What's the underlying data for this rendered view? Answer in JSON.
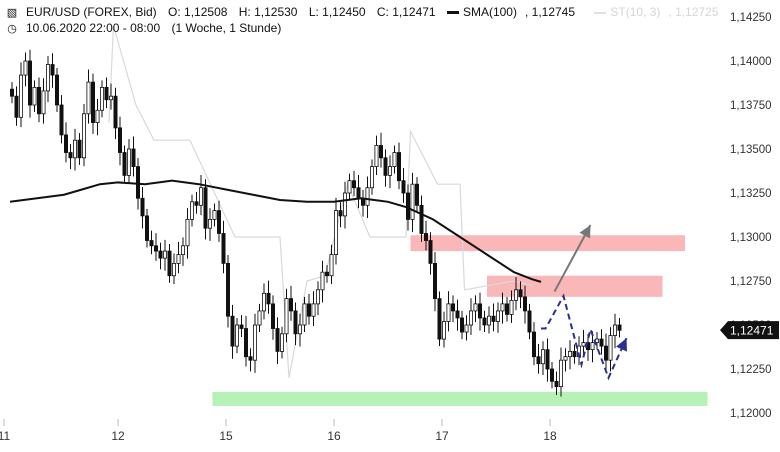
{
  "header": {
    "instrument": "EUR/USD (FOREX, Bid)",
    "open": "O: 1,12508",
    "high": "H: 1,12530",
    "low": "L: 1,12450",
    "close": "C: 1,12471",
    "sma_label": "SMA(100)",
    "sma_value": "1,12745",
    "st_label": "ST(10, 3)",
    "st_value": "1,12725",
    "datetime": "10.06.2020 22:00 - 08:00",
    "period": "(1 Woche, 1 Stunde)",
    "chart_icon": "candlestick-icon",
    "clock_icon": "clock-icon"
  },
  "colors": {
    "candle": "#111111",
    "sma": "#111111",
    "st": "#d9d9d9",
    "resistance_zone": "#f9b7b7",
    "support_zone": "#b6f2b6",
    "arrow_up": "#777777",
    "arrow_path": "#2b2f91",
    "price_tag_bg": "#111111",
    "price_tag_text": "#ffffff"
  },
  "chart_data": {
    "type": "candlestick",
    "ylim": [
      1.1195,
      1.1435
    ],
    "y_ticks": [
      "1,14250",
      "1,14000",
      "1,13750",
      "1,13500",
      "1,13250",
      "1,13000",
      "1,12750",
      "1,12500",
      "1,12250",
      "1,12000"
    ],
    "y_tick_values": [
      1.1425,
      1.14,
      1.1375,
      1.135,
      1.1325,
      1.13,
      1.1275,
      1.125,
      1.1225,
      1.12
    ],
    "x_ticks": [
      {
        "label": "11",
        "hour": 0
      },
      {
        "label": "12",
        "hour": 24
      },
      {
        "label": "15",
        "hour": 48
      },
      {
        "label": "16",
        "hour": 72
      },
      {
        "label": "17",
        "hour": 96
      },
      {
        "label": "18",
        "hour": 120
      }
    ],
    "last_price": "1,12471",
    "last_price_value": 1.12471,
    "closes": [
      1.138,
      1.1368,
      1.1392,
      1.14,
      1.1375,
      1.1385,
      1.137,
      1.1383,
      1.1398,
      1.1392,
      1.1375,
      1.1358,
      1.1348,
      1.1345,
      1.1355,
      1.1345,
      1.137,
      1.1388,
      1.1365,
      1.1372,
      1.1385,
      1.1378,
      1.138,
      1.1362,
      1.1348,
      1.1335,
      1.135,
      1.134,
      1.1322,
      1.1312,
      1.1298,
      1.1295,
      1.1292,
      1.1288,
      1.1292,
      1.1278,
      1.1285,
      1.129,
      1.1295,
      1.131,
      1.132,
      1.1318,
      1.1328,
      1.1305,
      1.131,
      1.1315,
      1.1302,
      1.1285,
      1.1255,
      1.1238,
      1.125,
      1.1248,
      1.1232,
      1.123,
      1.125,
      1.1258,
      1.1268,
      1.1262,
      1.1248,
      1.1235,
      1.1245,
      1.1265,
      1.1258,
      1.1245,
      1.125,
      1.1262,
      1.1255,
      1.1262,
      1.127,
      1.128,
      1.1278,
      1.129,
      1.1315,
      1.1312,
      1.1325,
      1.1332,
      1.1328,
      1.1322,
      1.1318,
      1.1328,
      1.134,
      1.1352,
      1.1345,
      1.1335,
      1.134,
      1.1348,
      1.1332,
      1.1325,
      1.131,
      1.133,
      1.1318,
      1.1302,
      1.1298,
      1.1285,
      1.1265,
      1.1242,
      1.1252,
      1.1262,
      1.1258,
      1.1254,
      1.1246,
      1.125,
      1.1258,
      1.1262,
      1.1254,
      1.125,
      1.1255,
      1.1252,
      1.1258,
      1.1262,
      1.1256,
      1.1264,
      1.127,
      1.1266,
      1.1258,
      1.1246,
      1.1232,
      1.1228,
      1.1236,
      1.1225,
      1.1218,
      1.1215,
      1.123,
      1.1232,
      1.1235,
      1.1232,
      1.1238,
      1.124,
      1.1236,
      1.124,
      1.1242,
      1.1238,
      1.123,
      1.1244,
      1.125,
      1.1247
    ],
    "sma100": [
      [
        0,
        1.132
      ],
      [
        6,
        1.1322
      ],
      [
        12,
        1.1324
      ],
      [
        16,
        1.1327
      ],
      [
        20,
        1.133
      ],
      [
        24,
        1.1331
      ],
      [
        30,
        1.133
      ],
      [
        36,
        1.1332
      ],
      [
        42,
        1.133
      ],
      [
        48,
        1.1327
      ],
      [
        54,
        1.1324
      ],
      [
        60,
        1.1321
      ],
      [
        66,
        1.132
      ],
      [
        72,
        1.132
      ],
      [
        78,
        1.1322
      ],
      [
        84,
        1.132
      ],
      [
        88,
        1.1317
      ],
      [
        94,
        1.131
      ],
      [
        100,
        1.13
      ],
      [
        106,
        1.129
      ],
      [
        112,
        1.128
      ],
      [
        116,
        1.1276
      ],
      [
        118,
        1.12745
      ]
    ],
    "supertrend": [
      [
        22,
        1.1365
      ],
      [
        23,
        1.142
      ],
      [
        28,
        1.1375
      ],
      [
        32,
        1.1355
      ],
      [
        40,
        1.1355
      ],
      [
        50,
        1.13
      ],
      [
        56,
        1.13
      ],
      [
        60,
        1.13
      ],
      [
        62,
        1.122
      ],
      [
        66,
        1.1275
      ],
      [
        70,
        1.1278
      ],
      [
        75,
        1.133
      ],
      [
        80,
        1.13
      ],
      [
        88,
        1.13
      ],
      [
        89,
        1.136
      ],
      [
        95,
        1.133
      ],
      [
        100,
        1.133
      ],
      [
        101,
        1.127
      ],
      [
        112,
        1.1275
      ],
      [
        116,
        1.12725
      ]
    ],
    "zones": [
      {
        "name": "resistance-upper",
        "from": 1.1292,
        "to": 1.1301,
        "x_start_hour": 89,
        "x_end_hour": 150
      },
      {
        "name": "resistance-lower",
        "from": 1.1266,
        "to": 1.1278,
        "x_start_hour": 106,
        "x_end_hour": 145
      },
      {
        "name": "support",
        "from": 1.1204,
        "to": 1.1212,
        "x_start_hour": 45,
        "x_end_hour": 155
      }
    ],
    "arrow_up": [
      [
        121,
        1.1269
      ],
      [
        129,
        1.13068
      ]
    ],
    "projection_path": [
      [
        118,
        1.1248
      ],
      [
        119,
        1.1248
      ],
      [
        123,
        1.12665
      ],
      [
        127,
        1.12275
      ],
      [
        129,
        1.12475
      ],
      [
        133,
        1.122
      ],
      [
        137,
        1.12425
      ]
    ]
  }
}
